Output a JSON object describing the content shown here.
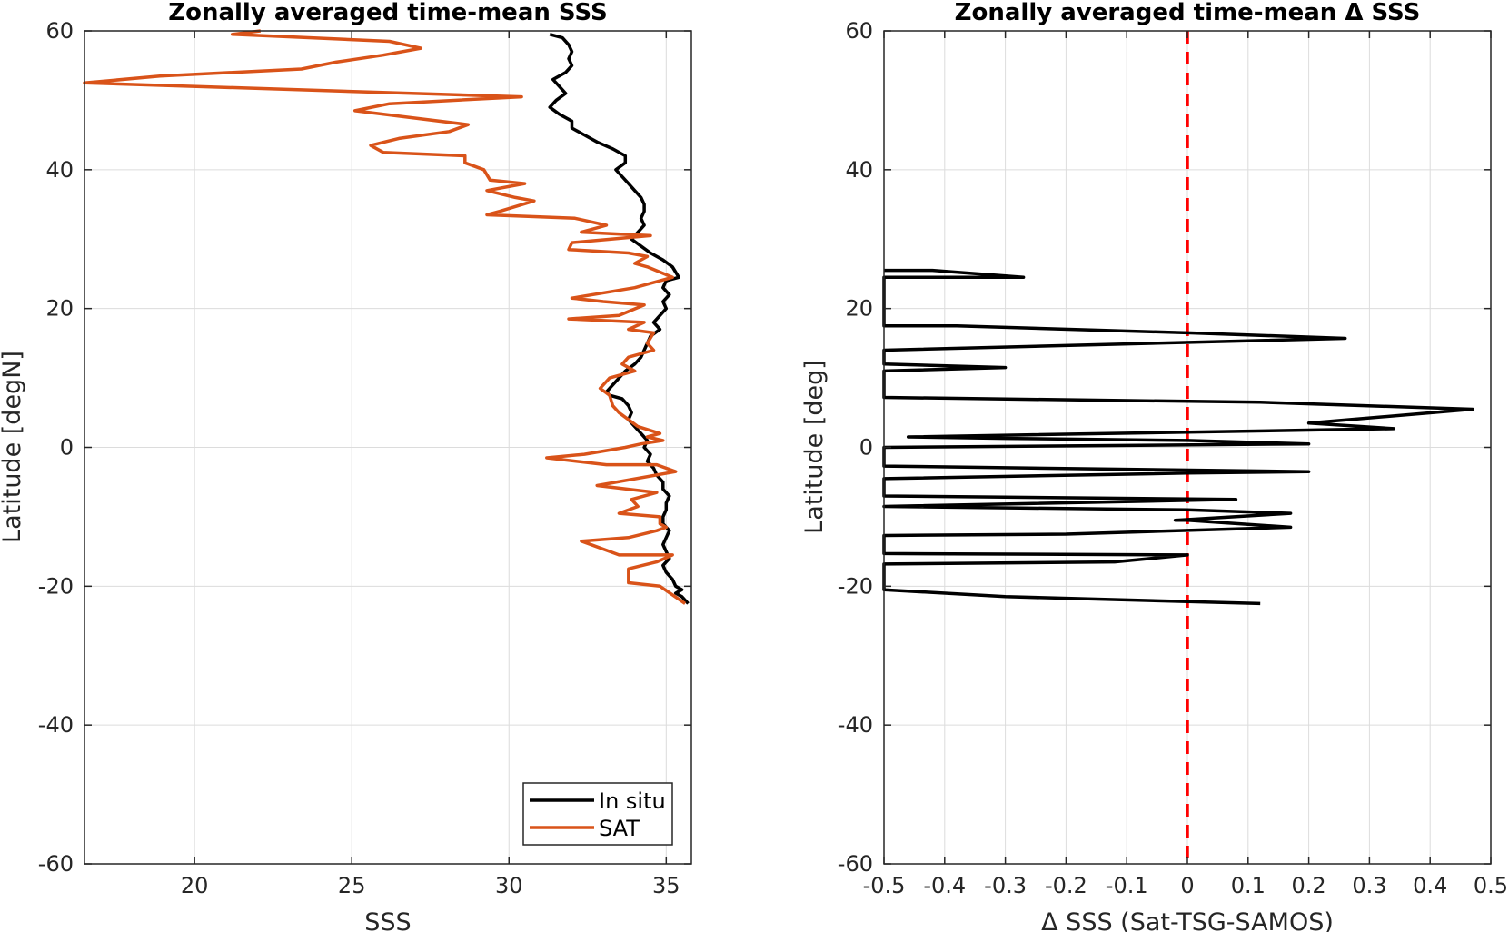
{
  "chart_data": [
    {
      "type": "line",
      "title": "Zonally averaged time-mean SSS",
      "xlabel": "SSS",
      "ylabel": "Latitude [degN]",
      "xlim": [
        16.5,
        35.8
      ],
      "ylim": [
        -60,
        60
      ],
      "xticks": [
        20,
        25,
        30,
        35
      ],
      "yticks": [
        -60,
        -40,
        -20,
        0,
        20,
        40,
        60
      ],
      "grid": true,
      "legend": "bottom-right",
      "series": [
        {
          "name": "In situ",
          "color": "#000000",
          "x": [
            31.3,
            31.7,
            31.9,
            32.0,
            31.9,
            32.0,
            31.8,
            31.4,
            31.6,
            31.8,
            31.5,
            31.3,
            31.6,
            32.0,
            32.0,
            32.4,
            32.8,
            33.3,
            33.7,
            33.7,
            33.4,
            33.6,
            33.8,
            34.0,
            34.2,
            34.3,
            34.3,
            34.2,
            34.3,
            34.1,
            33.9,
            34.2,
            34.5,
            34.9,
            35.2,
            35.4,
            35.0,
            34.9,
            35.1,
            34.9,
            35.0,
            34.8,
            34.6,
            34.8,
            34.5,
            34.4,
            34.3,
            34.2,
            34.0,
            33.7,
            33.5,
            33.3,
            33.1,
            33.2,
            33.6,
            33.8,
            33.9,
            33.8,
            34.0,
            34.2,
            34.4,
            34.3,
            34.5,
            34.4,
            34.6,
            34.7,
            34.9,
            34.9,
            35.1,
            35.0,
            35.0,
            34.9,
            34.9,
            35.1,
            35.0,
            34.9,
            35.0,
            35.1,
            34.9,
            35.0,
            35.2,
            35.3,
            35.5,
            35.3,
            35.5,
            35.7
          ],
          "y": [
            59.5,
            59.0,
            58.0,
            57.0,
            56.0,
            55.0,
            54.0,
            53.0,
            52.0,
            51.0,
            50.0,
            49.0,
            48.0,
            47.0,
            46.0,
            45.0,
            44.0,
            43.0,
            42.0,
            41.0,
            40.0,
            39.0,
            38.0,
            37.0,
            36.0,
            35.0,
            34.0,
            33.0,
            32.0,
            31.0,
            30.0,
            29.0,
            28.0,
            27.0,
            26.0,
            24.5,
            24.0,
            23.0,
            22.0,
            21.0,
            20.0,
            19.0,
            18.0,
            17.0,
            16.0,
            15.0,
            14.0,
            13.0,
            12.0,
            11.0,
            10.0,
            9.0,
            8.0,
            7.5,
            7.0,
            6.0,
            5.0,
            4.0,
            3.0,
            2.0,
            1.0,
            0.0,
            -1.0,
            -2.0,
            -3.0,
            -4.0,
            -5.0,
            -6.0,
            -7.0,
            -8.0,
            -9.0,
            -10.0,
            -11.0,
            -12.0,
            -13.0,
            -14.0,
            -15.0,
            -16.0,
            -17.0,
            -18.0,
            -19.0,
            -20.0,
            -20.5,
            -21.0,
            -21.5,
            -22.5
          ]
        },
        {
          "name": "SAT",
          "color": "#D95319",
          "x": [
            22.1,
            21.2,
            26.2,
            27.2,
            26.0,
            24.5,
            23.4,
            18.9,
            16.5,
            30.4,
            26.2,
            25.1,
            28.7,
            28.1,
            26.5,
            25.6,
            26.0,
            28.6,
            28.6,
            29.2,
            29.4,
            30.5,
            29.3,
            30.2,
            30.8,
            29.7,
            29.3,
            32.1,
            33.1,
            32.3,
            34.5,
            32.0,
            31.9,
            33.8,
            34.4,
            34.0,
            34.4,
            35.2,
            34.0,
            32.0,
            33.0,
            34.3,
            33.5,
            31.9,
            34.3,
            33.8,
            34.6,
            34.4,
            34.6,
            33.8,
            33.6,
            34.0,
            33.2,
            32.9,
            33.2,
            33.3,
            33.5,
            33.8,
            34.1,
            34.8,
            34.4,
            34.9,
            34.2,
            33.7,
            32.4,
            31.2,
            33.1,
            34.7,
            35.3,
            32.8,
            34.7,
            33.9,
            34.1,
            33.5,
            34.8,
            34.8,
            35.0,
            34.7,
            33.8,
            32.3,
            33.5,
            35.2,
            34.7,
            33.8,
            33.8,
            34.8,
            35.6
          ],
          "y": [
            60.0,
            59.5,
            58.5,
            57.5,
            56.5,
            55.5,
            54.5,
            53.5,
            52.5,
            50.5,
            49.5,
            48.5,
            46.5,
            45.5,
            44.5,
            43.5,
            42.5,
            42.0,
            41.0,
            40.0,
            38.5,
            38.0,
            37.0,
            36.0,
            35.5,
            34.0,
            33.5,
            33.0,
            32.0,
            31.0,
            30.5,
            29.5,
            28.5,
            28.0,
            27.5,
            26.5,
            26.0,
            24.5,
            23.0,
            21.5,
            21.0,
            20.5,
            19.0,
            18.5,
            18.0,
            17.0,
            16.5,
            15.0,
            14.0,
            13.0,
            12.0,
            11.0,
            10.0,
            8.5,
            7.5,
            6.0,
            5.0,
            4.0,
            3.0,
            2.0,
            1.5,
            1.0,
            0.5,
            0.0,
            -1.0,
            -1.5,
            -2.5,
            -2.5,
            -3.5,
            -5.5,
            -6.5,
            -7.5,
            -8.5,
            -9.5,
            -10.0,
            -11.0,
            -11.5,
            -12.0,
            -13.0,
            -13.5,
            -15.5,
            -15.5,
            -16.5,
            -17.5,
            -19.5,
            -20.0,
            -22.5
          ]
        }
      ]
    },
    {
      "type": "line",
      "title": "Zonally averaged time-mean Δ SSS",
      "xlabel": "Δ SSS (Sat-TSG-SAMOS)",
      "ylabel": "Latitude [deg]",
      "xlim": [
        -0.5,
        0.5
      ],
      "ylim": [
        -60,
        60
      ],
      "xticks": [
        -0.5,
        -0.4,
        -0.3,
        -0.2,
        -0.1,
        0,
        0.1,
        0.2,
        0.3,
        0.4,
        0.5
      ],
      "yticks": [
        -60,
        -40,
        -20,
        0,
        20,
        40,
        60
      ],
      "grid": true,
      "reference_line": {
        "x": 0,
        "color": "#FF0000",
        "style": "dashed"
      },
      "series": [
        {
          "color": "#000000",
          "x": [
            -0.5,
            -0.42,
            -0.27,
            -0.5,
            -0.5,
            -0.38,
            0.0,
            0.26,
            -0.5,
            -0.5,
            -0.3,
            -0.5,
            -0.5,
            0.12,
            0.47,
            0.2,
            0.34,
            -0.46,
            -0.3,
            0.0,
            0.2,
            -0.5,
            -0.5,
            0.2,
            0.0,
            -0.5,
            -0.5,
            0.08,
            -0.5,
            0.0,
            0.17,
            -0.02,
            0.0,
            0.17,
            -0.2,
            -0.5,
            -0.5,
            0.0,
            -0.12,
            -0.5,
            -0.5,
            -0.3,
            0.12
          ],
          "y": [
            25.5,
            25.5,
            24.5,
            24.5,
            17.5,
            17.5,
            16.5,
            15.7,
            14.0,
            12.0,
            11.5,
            11.0,
            7.2,
            6.5,
            5.5,
            3.5,
            2.7,
            1.5,
            1.3,
            1.0,
            0.5,
            0.0,
            -2.7,
            -3.5,
            -3.7,
            -4.5,
            -7.0,
            -7.5,
            -8.5,
            -9.0,
            -9.5,
            -10.5,
            -10.5,
            -11.5,
            -12.5,
            -12.7,
            -15.3,
            -15.5,
            -16.5,
            -16.8,
            -20.5,
            -21.5,
            -22.5
          ]
        }
      ]
    }
  ]
}
